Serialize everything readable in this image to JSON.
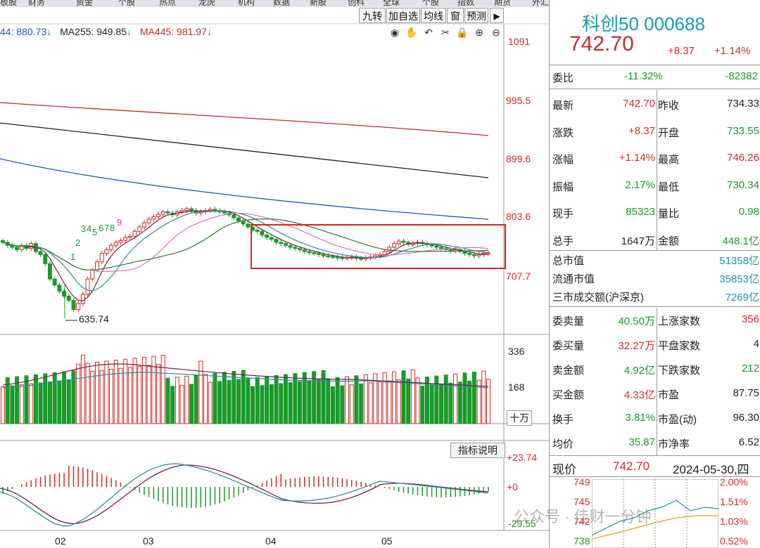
{
  "nav": {
    "items": [
      "板股",
      "财务",
      "资金",
      "个股",
      "热点",
      "龙虎",
      "机构",
      "数据",
      "新股",
      "创科",
      "全球",
      "个股",
      "指数",
      "期货",
      "外汇",
      "美股",
      "首选"
    ]
  },
  "toolbar": {
    "buttons": [
      "九转",
      "加自选",
      "均线",
      "窗",
      "预测"
    ],
    "icons": [
      "eye-icon",
      "hand-icon",
      "undo-icon",
      "scissors-icon",
      "lock-icon",
      "zoom-in-icon",
      "zoom-out-icon"
    ]
  },
  "ma_legend": {
    "ma144": "44: 880.73",
    "ma144_arrow": "↓",
    "ma255": "MA255: 949.85",
    "ma255_arrow": "↓",
    "ma445": "MA445: 981.97",
    "ma445_arrow": "↓"
  },
  "price_axis": [
    "1091",
    "995.5",
    "899.6",
    "803.6",
    "707.7"
  ],
  "low_marker": "635.74",
  "nine_turn_labels": [
    "1",
    "2",
    "3",
    "4",
    "5",
    "6",
    "7",
    "8",
    "9"
  ],
  "volume_axis": [
    "336",
    "168",
    "十万"
  ],
  "indicator": {
    "button": "指标说明",
    "axis": [
      "+23.74",
      "+0",
      "-29.55"
    ]
  },
  "x_axis": [
    "02",
    "03",
    "04",
    "05"
  ],
  "quote": {
    "name_code": "科创50 000688",
    "price": "742.70",
    "change": "+8.37",
    "change_pct": "+1.14%",
    "weibi_label": "委比",
    "weibi_pct": "-11.32%",
    "weibi_val": "-82382",
    "rows": [
      {
        "l1": "最新",
        "v1": "742.70",
        "c1": "#d42a2a",
        "l2": "昨收",
        "v2": "734.33",
        "c2": "#222"
      },
      {
        "l1": "涨跌",
        "v1": "+8.37",
        "c1": "#d42a2a",
        "l2": "开盘",
        "v2": "733.55",
        "c2": "#1a9a2a"
      },
      {
        "l1": "涨幅",
        "v1": "+1.14%",
        "c1": "#d42a2a",
        "l2": "最高",
        "v2": "746.26",
        "c2": "#d42a2a"
      },
      {
        "l1": "振幅",
        "v1": "2.17%",
        "c1": "#1a9a2a",
        "l2": "最低",
        "v2": "730.34",
        "c2": "#1a9a2a"
      },
      {
        "l1": "现手",
        "v1": "85323",
        "c1": "#1a9a2a",
        "l2": "量比",
        "v2": "0.98",
        "c2": "#1a9a2a"
      },
      {
        "l1": "总手",
        "v1": "1647万",
        "c1": "#222",
        "l2": "金额",
        "v2": "448.1亿",
        "c2": "#1a9a2a"
      }
    ],
    "cap_rows": [
      {
        "label": "总市值",
        "value": "51358亿"
      },
      {
        "label": "流通市值",
        "value": "35853亿"
      },
      {
        "label": "三市成交额(沪深京)",
        "value": "7269亿"
      }
    ],
    "rows2": [
      {
        "l1": "委卖量",
        "v1": "40.50万",
        "c1": "#1a9a2a",
        "l2": "上涨家数",
        "v2": "356",
        "c2": "#d42a2a"
      },
      {
        "l1": "委买量",
        "v1": "32.27万",
        "c1": "#d42a2a",
        "l2": "平盘家数",
        "v2": "4",
        "c2": "#222"
      },
      {
        "l1": "卖金额",
        "v1": "4.92亿",
        "c1": "#1a9a2a",
        "l2": "下跌家数",
        "v2": "212",
        "c2": "#1a9a2a"
      },
      {
        "l1": "买金额",
        "v1": "4.33亿",
        "c1": "#d42a2a",
        "l2": "市盈",
        "v2": "87.75",
        "c2": "#222"
      },
      {
        "l1": "换手",
        "v1": "3.81%",
        "c1": "#1a9a2a",
        "l2": "市盈(动)",
        "v2": "96.30",
        "c2": "#222"
      },
      {
        "l1": "均价",
        "v1": "35.87",
        "c1": "#1a9a2a",
        "l2": "市净率",
        "v2": "6.52",
        "c2": "#222"
      }
    ],
    "intraday": {
      "label": "现价",
      "price": "742.70",
      "date": "2024-05-30,四",
      "left_axis": [
        "749",
        "745",
        "742",
        "738"
      ],
      "right_axis": [
        "2.00%",
        "1.51%",
        "1.03%",
        "0.52%"
      ]
    }
  },
  "watermark": "公众号 · 佳财一分钟",
  "colors": {
    "up": "#d42a2a",
    "down": "#1a9a2a",
    "highlight_box": "#e02020"
  }
}
